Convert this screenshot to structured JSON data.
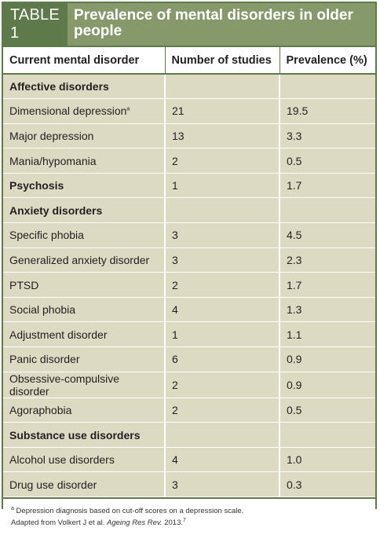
{
  "table": {
    "tag": "TABLE 1",
    "title": "Prevalence of mental disorders in older people",
    "columns": [
      "Current mental disorder",
      "Number of studies",
      "Prevalence (%)"
    ],
    "rows": [
      {
        "label": "Affective disorders",
        "studies": "",
        "prevalence": "",
        "category": true
      },
      {
        "label": "Dimensional depression",
        "sup": "a",
        "studies": "21",
        "prevalence": "19.5",
        "category": false
      },
      {
        "label": "Major depression",
        "studies": "13",
        "prevalence": "3.3",
        "category": false
      },
      {
        "label": "Mania/hypomania",
        "studies": "2",
        "prevalence": "0.5",
        "category": false
      },
      {
        "label": "Psychosis",
        "studies": "1",
        "prevalence": "1.7",
        "category": true
      },
      {
        "label": "Anxiety disorders",
        "studies": "",
        "prevalence": "",
        "category": true
      },
      {
        "label": "Specific phobia",
        "studies": "3",
        "prevalence": "4.5",
        "category": false
      },
      {
        "label": "Generalized anxiety disorder",
        "studies": "3",
        "prevalence": "2.3",
        "category": false
      },
      {
        "label": "PTSD",
        "studies": "2",
        "prevalence": "1.7",
        "category": false
      },
      {
        "label": "Social phobia",
        "studies": "4",
        "prevalence": "1.3",
        "category": false
      },
      {
        "label": "Adjustment disorder",
        "studies": "1",
        "prevalence": "1.1",
        "category": false
      },
      {
        "label": "Panic disorder",
        "studies": "6",
        "prevalence": "0.9",
        "category": false
      },
      {
        "label": "Obsessive-compulsive disorder",
        "studies": "2",
        "prevalence": "0.9",
        "category": false
      },
      {
        "label": "Agoraphobia",
        "studies": "2",
        "prevalence": "0.5",
        "category": false
      },
      {
        "label": "Substance use disorders",
        "studies": "",
        "prevalence": "",
        "category": true
      },
      {
        "label": "Alcohol use disorders",
        "studies": "4",
        "prevalence": "1.0",
        "category": false
      },
      {
        "label": "Drug use disorder",
        "studies": "3",
        "prevalence": "0.3",
        "category": false
      }
    ],
    "footnote_marker": "a",
    "footnote_text": "Depression diagnosis based on cut-off scores on a depression scale.",
    "source_prefix": "Adapted from Volkert J et al. ",
    "source_journal": "Ageing Res Rev.",
    "source_year": " 2013.",
    "source_ref": "7"
  },
  "colors": {
    "dark_green": "#5e7a4a",
    "light_green": "#86996a",
    "row_bg": "#dddac4"
  }
}
